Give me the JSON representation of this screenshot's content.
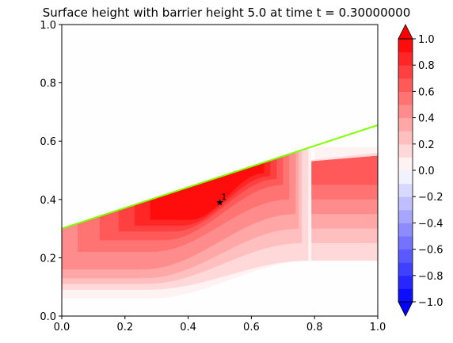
{
  "chart_data": {
    "type": "contourf",
    "title": "Surface height with barrier height 5.0 at time t =     0.30000000",
    "xlabel": "",
    "ylabel": "",
    "xlim": [
      0,
      1
    ],
    "ylim": [
      0,
      1
    ],
    "x_ticks": [
      "0.0",
      "0.2",
      "0.4",
      "0.6",
      "0.8",
      "1.0"
    ],
    "y_ticks": [
      "0.0",
      "0.2",
      "0.4",
      "0.6",
      "0.8",
      "1.0"
    ],
    "grid": false,
    "colorbar": {
      "range": [
        -1.0,
        1.0
      ],
      "levels": [
        -1.0,
        -0.9,
        -0.8,
        -0.7,
        -0.6,
        -0.5,
        -0.4,
        -0.3,
        -0.2,
        -0.1,
        0.0,
        0.1,
        0.2,
        0.3,
        0.4,
        0.5,
        0.6,
        0.7,
        0.8,
        0.9,
        1.0
      ],
      "tick_labels": [
        "1.0",
        "0.8",
        "0.6",
        "0.4",
        "0.2",
        "0.0",
        "−0.2",
        "−0.4",
        "−0.6",
        "−0.8",
        "−1.0"
      ],
      "extend": "both",
      "low_color": "#0000ff",
      "high_color": "#ff0000"
    },
    "barrier_line": {
      "color": "#7fff00",
      "x": [
        0.0,
        1.0
      ],
      "y": [
        0.3,
        0.655
      ]
    },
    "bands": [
      {
        "level": 0.05,
        "x_start": 0.8,
        "x_end": 1.0,
        "y_bottom": 0.19,
        "y_top": 0.58
      },
      {
        "level": 0.15,
        "x_start": 0.6,
        "x_end": 1.0,
        "y_bottom": 0.19,
        "y_top": 0.56
      },
      {
        "level": 0.25,
        "x_start": 0.6,
        "x_end": 1.0,
        "y_bottom": 0.25,
        "y_top": 0.55
      },
      {
        "level": 0.35,
        "x_start": 0.6,
        "x_end": 1.0,
        "y_bottom": 0.3,
        "y_top": 0.55
      },
      {
        "level": 0.45,
        "x_start": 0.6,
        "x_end": 1.0,
        "y_bottom": 0.35,
        "y_top": 0.55
      },
      {
        "level": 0.55,
        "x_start": 0.6,
        "x_end": 1.0,
        "y_bottom": 0.4,
        "y_top": 0.55
      },
      {
        "level": 0.65,
        "x_start": 0.6,
        "x_end": 1.0,
        "y_bottom": 0.45,
        "y_top": 0.55
      }
    ],
    "marker": {
      "x": 0.5,
      "y": 0.39,
      "symbol": "★",
      "label": "1"
    }
  }
}
